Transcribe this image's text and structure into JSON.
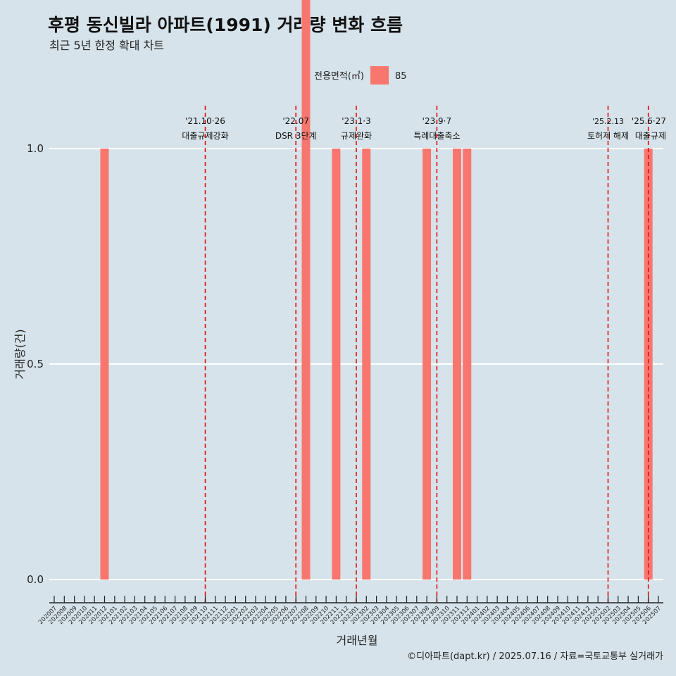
{
  "title": "후평 동신빌라 아파트(1991) 거래량 변화 흐름",
  "subtitle": "최근 5년 한정 확대 차트",
  "caption": "©디아파트(dapt.kr) / 2025.07.16 / 자료=국토교통부 실거래가",
  "colors": {
    "bar": "#f8766d",
    "vline": "#e01010",
    "background": "#d6e3ea",
    "grid": "#ffffff"
  },
  "chart_data": {
    "type": "bar",
    "xlabel": "거래년월",
    "ylabel": "거래량(건)",
    "ylim": [
      0,
      2.2
    ],
    "yticks": [
      "0.0",
      "0.5",
      "1.0",
      "1.5",
      "2.0"
    ],
    "legend": {
      "title": "전용면적(㎡)",
      "position": "top",
      "entries": [
        "85"
      ]
    },
    "categories": [
      "202007",
      "202008",
      "202009",
      "202010",
      "202011",
      "202012",
      "202101",
      "202102",
      "202103",
      "202104",
      "202105",
      "202106",
      "202107",
      "202108",
      "202109",
      "202110",
      "202111",
      "202112",
      "202201",
      "202202",
      "202203",
      "202204",
      "202205",
      "202206",
      "202207",
      "202208",
      "202209",
      "202210",
      "202211",
      "202212",
      "202301",
      "202302",
      "202303",
      "202304",
      "202305",
      "202306",
      "202307",
      "202308",
      "202309",
      "202310",
      "202311",
      "202312",
      "202401",
      "202402",
      "202403",
      "202404",
      "202405",
      "202406",
      "202407",
      "202408",
      "202409",
      "202410",
      "202411",
      "202412",
      "202501",
      "202502",
      "202503",
      "202504",
      "202505",
      "202506",
      "202507"
    ],
    "series": [
      {
        "name": "85",
        "values": [
          0,
          0,
          0,
          0,
          0,
          1,
          0,
          0,
          0,
          0,
          0,
          0,
          0,
          0,
          0,
          0,
          0,
          0,
          0,
          0,
          0,
          0,
          0,
          0,
          0,
          2,
          0,
          0,
          1,
          0,
          0,
          1,
          0,
          0,
          0,
          0,
          0,
          1,
          0,
          0,
          1,
          1,
          0,
          0,
          0,
          0,
          0,
          0,
          0,
          0,
          0,
          0,
          0,
          0,
          0,
          0,
          0,
          0,
          0,
          1,
          0
        ]
      }
    ],
    "annotations": [
      {
        "date_label": "'21.10·26",
        "text": "대출규제강화",
        "x": "202110"
      },
      {
        "date_label": "'22.07",
        "text": "DSR 3단계",
        "x": "202207"
      },
      {
        "date_label": "'23.1·3",
        "text": "규제완화",
        "x": "202301"
      },
      {
        "date_label": "'23.9·7",
        "text": "특례대출축소",
        "x": "202309"
      },
      {
        "date_label": "'25.2.13",
        "text": "토허제 해제",
        "x": "202502"
      },
      {
        "date_label": "'25.6·27",
        "text": "대출규제",
        "x": "202506"
      }
    ]
  }
}
